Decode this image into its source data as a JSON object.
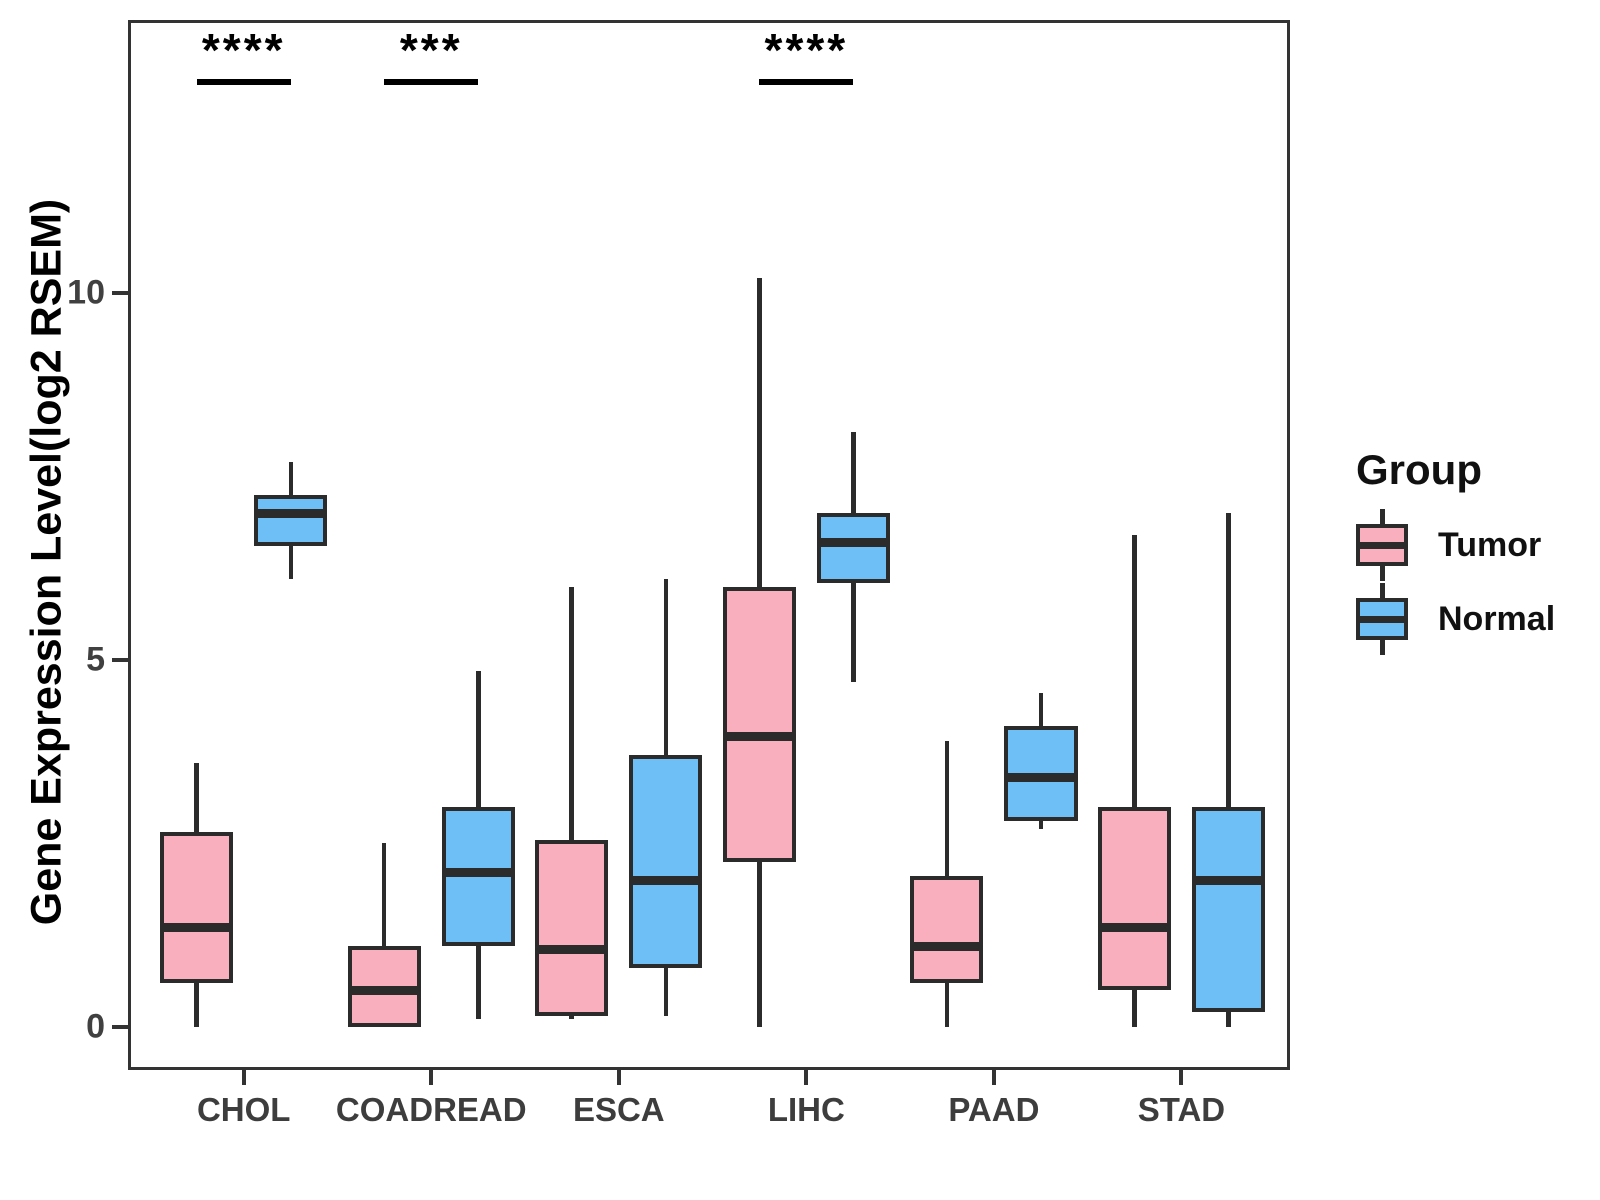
{
  "figure": {
    "background": "#ffffff"
  },
  "legend": {
    "title": "Group",
    "items": [
      {
        "label": "Tumor",
        "color": "#FAAFBF"
      },
      {
        "label": "Normal",
        "color": "#6FBFF7"
      }
    ]
  },
  "chart_data": {
    "type": "boxplot",
    "title": "",
    "xlabel": "",
    "ylabel": "Gene Expression Level(log2 RSEM)",
    "categories": [
      "CHOL",
      "COADREAD",
      "ESCA",
      "LIHC",
      "PAAD",
      "STAD"
    ],
    "yticks": [
      0,
      5,
      10
    ],
    "ylim": [
      -0.63,
      13.68
    ],
    "grid": false,
    "legend_position": "right",
    "stroke_color": "#2b2b2b",
    "series": [
      {
        "name": "Tumor",
        "color": "#FAAFBF",
        "boxes": [
          {
            "category": "CHOL",
            "min": 0,
            "q1": 0.6,
            "median": 1.35,
            "q3": 2.65,
            "max": 3.6
          },
          {
            "category": "COADREAD",
            "min": 0,
            "q1": 0,
            "median": 0.5,
            "q3": 1.1,
            "max": 2.5
          },
          {
            "category": "ESCA",
            "min": 0.1,
            "q1": 0.15,
            "median": 1.05,
            "q3": 2.55,
            "max": 6.0
          },
          {
            "category": "LIHC",
            "min": 0,
            "q1": 2.25,
            "median": 3.95,
            "q3": 6.0,
            "max": 10.2
          },
          {
            "category": "PAAD",
            "min": 0,
            "q1": 0.6,
            "median": 1.1,
            "q3": 2.05,
            "max": 3.9
          },
          {
            "category": "STAD",
            "min": 0,
            "q1": 0.5,
            "median": 1.35,
            "q3": 3.0,
            "max": 6.7
          }
        ]
      },
      {
        "name": "Normal",
        "color": "#6FBFF7",
        "boxes": [
          {
            "category": "CHOL",
            "min": 6.1,
            "q1": 6.55,
            "median": 7.0,
            "q3": 7.25,
            "max": 7.7
          },
          {
            "category": "COADREAD",
            "min": 0.1,
            "q1": 1.1,
            "median": 2.1,
            "q3": 3.0,
            "max": 4.85
          },
          {
            "category": "ESCA",
            "min": 0.15,
            "q1": 0.8,
            "median": 2.0,
            "q3": 3.7,
            "max": 6.1
          },
          {
            "category": "LIHC",
            "min": 4.7,
            "q1": 6.05,
            "median": 6.6,
            "q3": 7.0,
            "max": 8.1
          },
          {
            "category": "PAAD",
            "min": 2.7,
            "q1": 2.8,
            "median": 3.4,
            "q3": 4.1,
            "max": 4.55
          },
          {
            "category": "STAD",
            "min": 0,
            "q1": 0.2,
            "median": 2.0,
            "q3": 3.0,
            "max": 7.0
          }
        ]
      }
    ],
    "significance": [
      {
        "category": "CHOL",
        "label": "****"
      },
      {
        "category": "COADREAD",
        "label": "***"
      },
      {
        "category": "LIHC",
        "label": "****"
      }
    ],
    "layout": {
      "first_center_frac": 0.097,
      "center_spacing_frac": 0.1614,
      "dodge_frac": 0.0405,
      "box_width_frac": 0.063,
      "sig_line_frac": 0.053
    }
  }
}
